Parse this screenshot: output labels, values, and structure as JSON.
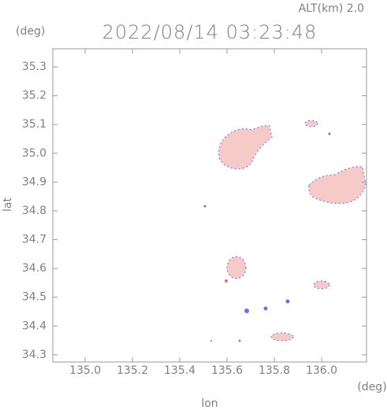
{
  "chart_data": {
    "type": "map",
    "title": "2022/08/14 03:23:48",
    "altitude": "ALT(km) 2.0",
    "y_unit": "(deg)",
    "x_unit": "(deg)",
    "xlabel": "lon",
    "ylabel": "lat",
    "xlim": [
      134.863,
      136.19
    ],
    "ylim": [
      34.275,
      35.363
    ],
    "xticks": [
      {
        "value": 135,
        "label": "135.0"
      },
      135.2,
      135.4,
      135.6,
      135.8,
      {
        "value": 136,
        "label": "136.0"
      }
    ],
    "yticks": [
      35.3,
      35.2,
      35.1,
      {
        "value": 35,
        "label": "35.0"
      },
      34.9,
      34.8,
      34.7,
      34.6,
      34.5,
      34.4,
      34.3
    ]
  }
}
